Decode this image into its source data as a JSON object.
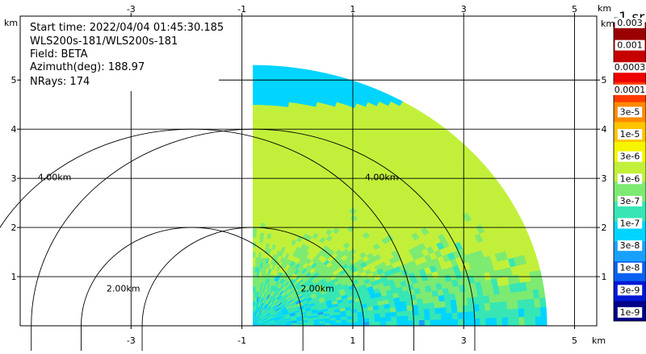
{
  "info": {
    "start_time": "Start time: 2022/04/04 01:45:30.185",
    "instrument": "WLS200s-181/WLS200s-181",
    "field": "Field: BETA",
    "azimuth": "Azimuth(deg): 188.97",
    "nrays": "NRays: 174"
  },
  "colorbar": {
    "title": "-1 sr",
    "labels": [
      "0.003",
      "0.001",
      "0.0003",
      "0.0001",
      "3e-5",
      "1e-5",
      "3e-6",
      "1e-6",
      "3e-7",
      "1e-7",
      "3e-8",
      "1e-8",
      "3e-9",
      "1e-9"
    ],
    "colors": [
      "#9b0000",
      "#c60000",
      "#ee0000",
      "#ff3a00",
      "#ff8a00",
      "#ffc400",
      "#f5f500",
      "#c2f03a",
      "#7dea72",
      "#37e6b4",
      "#00d4ff",
      "#19a0ff",
      "#0a60f0",
      "#0018d6",
      "#000088"
    ]
  },
  "chart_data": {
    "type": "heatmap",
    "x_unit": "km",
    "y_unit": "km",
    "x_ticks_top": [
      "-3",
      "-1",
      "1",
      "3",
      "5"
    ],
    "x_ticks_bottom": [
      "-3",
      "-1",
      "1",
      "3",
      "5"
    ],
    "y_ticks_left": [
      "5",
      "4",
      "3",
      "2",
      "1"
    ],
    "y_ticks_right": [
      "5",
      "4",
      "3",
      "2",
      "1"
    ],
    "x_tick_values": [
      -3,
      -1,
      1,
      3,
      5
    ],
    "y_tick_values": [
      5,
      4,
      3,
      2,
      1
    ],
    "xlim": [
      -5.0,
      5.4
    ],
    "ylim": [
      0,
      6.3
    ],
    "range_rings": [
      {
        "radius_km": 2,
        "label": "2.00km"
      },
      {
        "radius_km": 4,
        "label": "4.00km"
      }
    ],
    "sector": {
      "azimuth_start_deg": 0,
      "azimuth_end_deg": 90,
      "max_range_km": 5.3,
      "radar_x_km": -0.8,
      "radar_y_km": 0
    },
    "grid": true
  }
}
